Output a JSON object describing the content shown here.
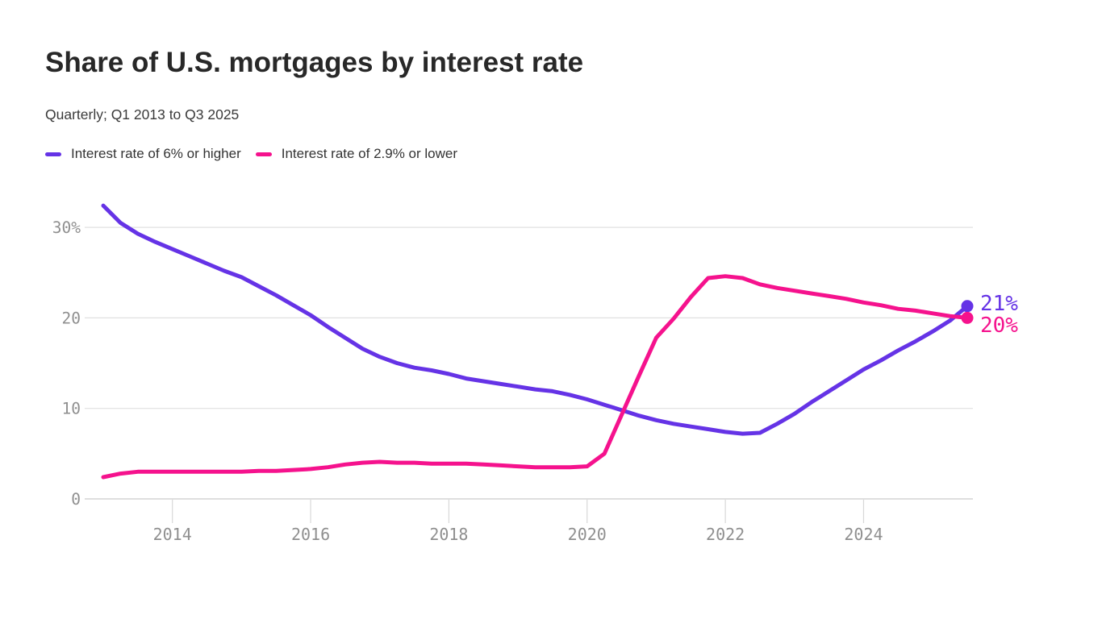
{
  "header": {
    "title": "Share of U.S. mortgages by interest rate",
    "subtitle": "Quarterly; Q1 2013 to Q3 2025"
  },
  "legend": {
    "items": [
      {
        "label": "Interest rate of 6% or higher",
        "color": "#6533e6"
      },
      {
        "label": "Interest rate of 2.9% or lower",
        "color": "#f5128d"
      }
    ]
  },
  "end_labels": [
    {
      "text": "21%",
      "color": "#6533e6"
    },
    {
      "text": "20%",
      "color": "#f5128d"
    }
  ],
  "chart_data": {
    "type": "line",
    "title": "Share of U.S. mortgages by interest rate",
    "subtitle": "Quarterly; Q1 2013 to Q3 2025",
    "x_unit": "quarter",
    "x_start": "Q1 2013",
    "x_end": "Q3 2025",
    "ylim": [
      0,
      33
    ],
    "grid": "horizontal",
    "legend_position": "top-left",
    "y_ticks": [
      {
        "value": 0,
        "label": "0"
      },
      {
        "value": 10,
        "label": "10"
      },
      {
        "value": 20,
        "label": "20"
      },
      {
        "value": 30,
        "label": "30%"
      }
    ],
    "x_ticks": [
      {
        "quarter_index": 4,
        "label": "2014"
      },
      {
        "quarter_index": 12,
        "label": "2016"
      },
      {
        "quarter_index": 20,
        "label": "2018"
      },
      {
        "quarter_index": 28,
        "label": "2020"
      },
      {
        "quarter_index": 36,
        "label": "2022"
      },
      {
        "quarter_index": 44,
        "label": "2024"
      }
    ],
    "series": [
      {
        "name": "Interest rate of 6% or higher",
        "color": "#6533e6",
        "end_label": "21%",
        "values": [
          32.4,
          30.5,
          29.3,
          28.4,
          27.6,
          26.8,
          26.0,
          25.2,
          24.5,
          23.5,
          22.5,
          21.4,
          20.3,
          19.0,
          17.8,
          16.6,
          15.7,
          15.0,
          14.5,
          14.2,
          13.8,
          13.3,
          13.0,
          12.7,
          12.4,
          12.1,
          11.9,
          11.5,
          11.0,
          10.4,
          9.8,
          9.2,
          8.7,
          8.3,
          8.0,
          7.7,
          7.4,
          7.2,
          7.3,
          8.3,
          9.4,
          10.7,
          11.9,
          13.1,
          14.3,
          15.3,
          16.4,
          17.4,
          18.5,
          19.7,
          21.3
        ]
      },
      {
        "name": "Interest rate of 2.9% or lower",
        "color": "#f5128d",
        "end_label": "20%",
        "values": [
          2.4,
          2.8,
          3.0,
          3.0,
          3.0,
          3.0,
          3.0,
          3.0,
          3.0,
          3.1,
          3.1,
          3.2,
          3.3,
          3.5,
          3.8,
          4.0,
          4.1,
          4.0,
          4.0,
          3.9,
          3.9,
          3.9,
          3.8,
          3.7,
          3.6,
          3.5,
          3.5,
          3.5,
          3.6,
          5.0,
          9.3,
          13.6,
          17.8,
          19.9,
          22.3,
          24.4,
          24.6,
          24.4,
          23.7,
          23.3,
          23.0,
          22.7,
          22.4,
          22.1,
          21.7,
          21.4,
          21.0,
          20.8,
          20.5,
          20.2,
          20.0
        ]
      }
    ]
  }
}
